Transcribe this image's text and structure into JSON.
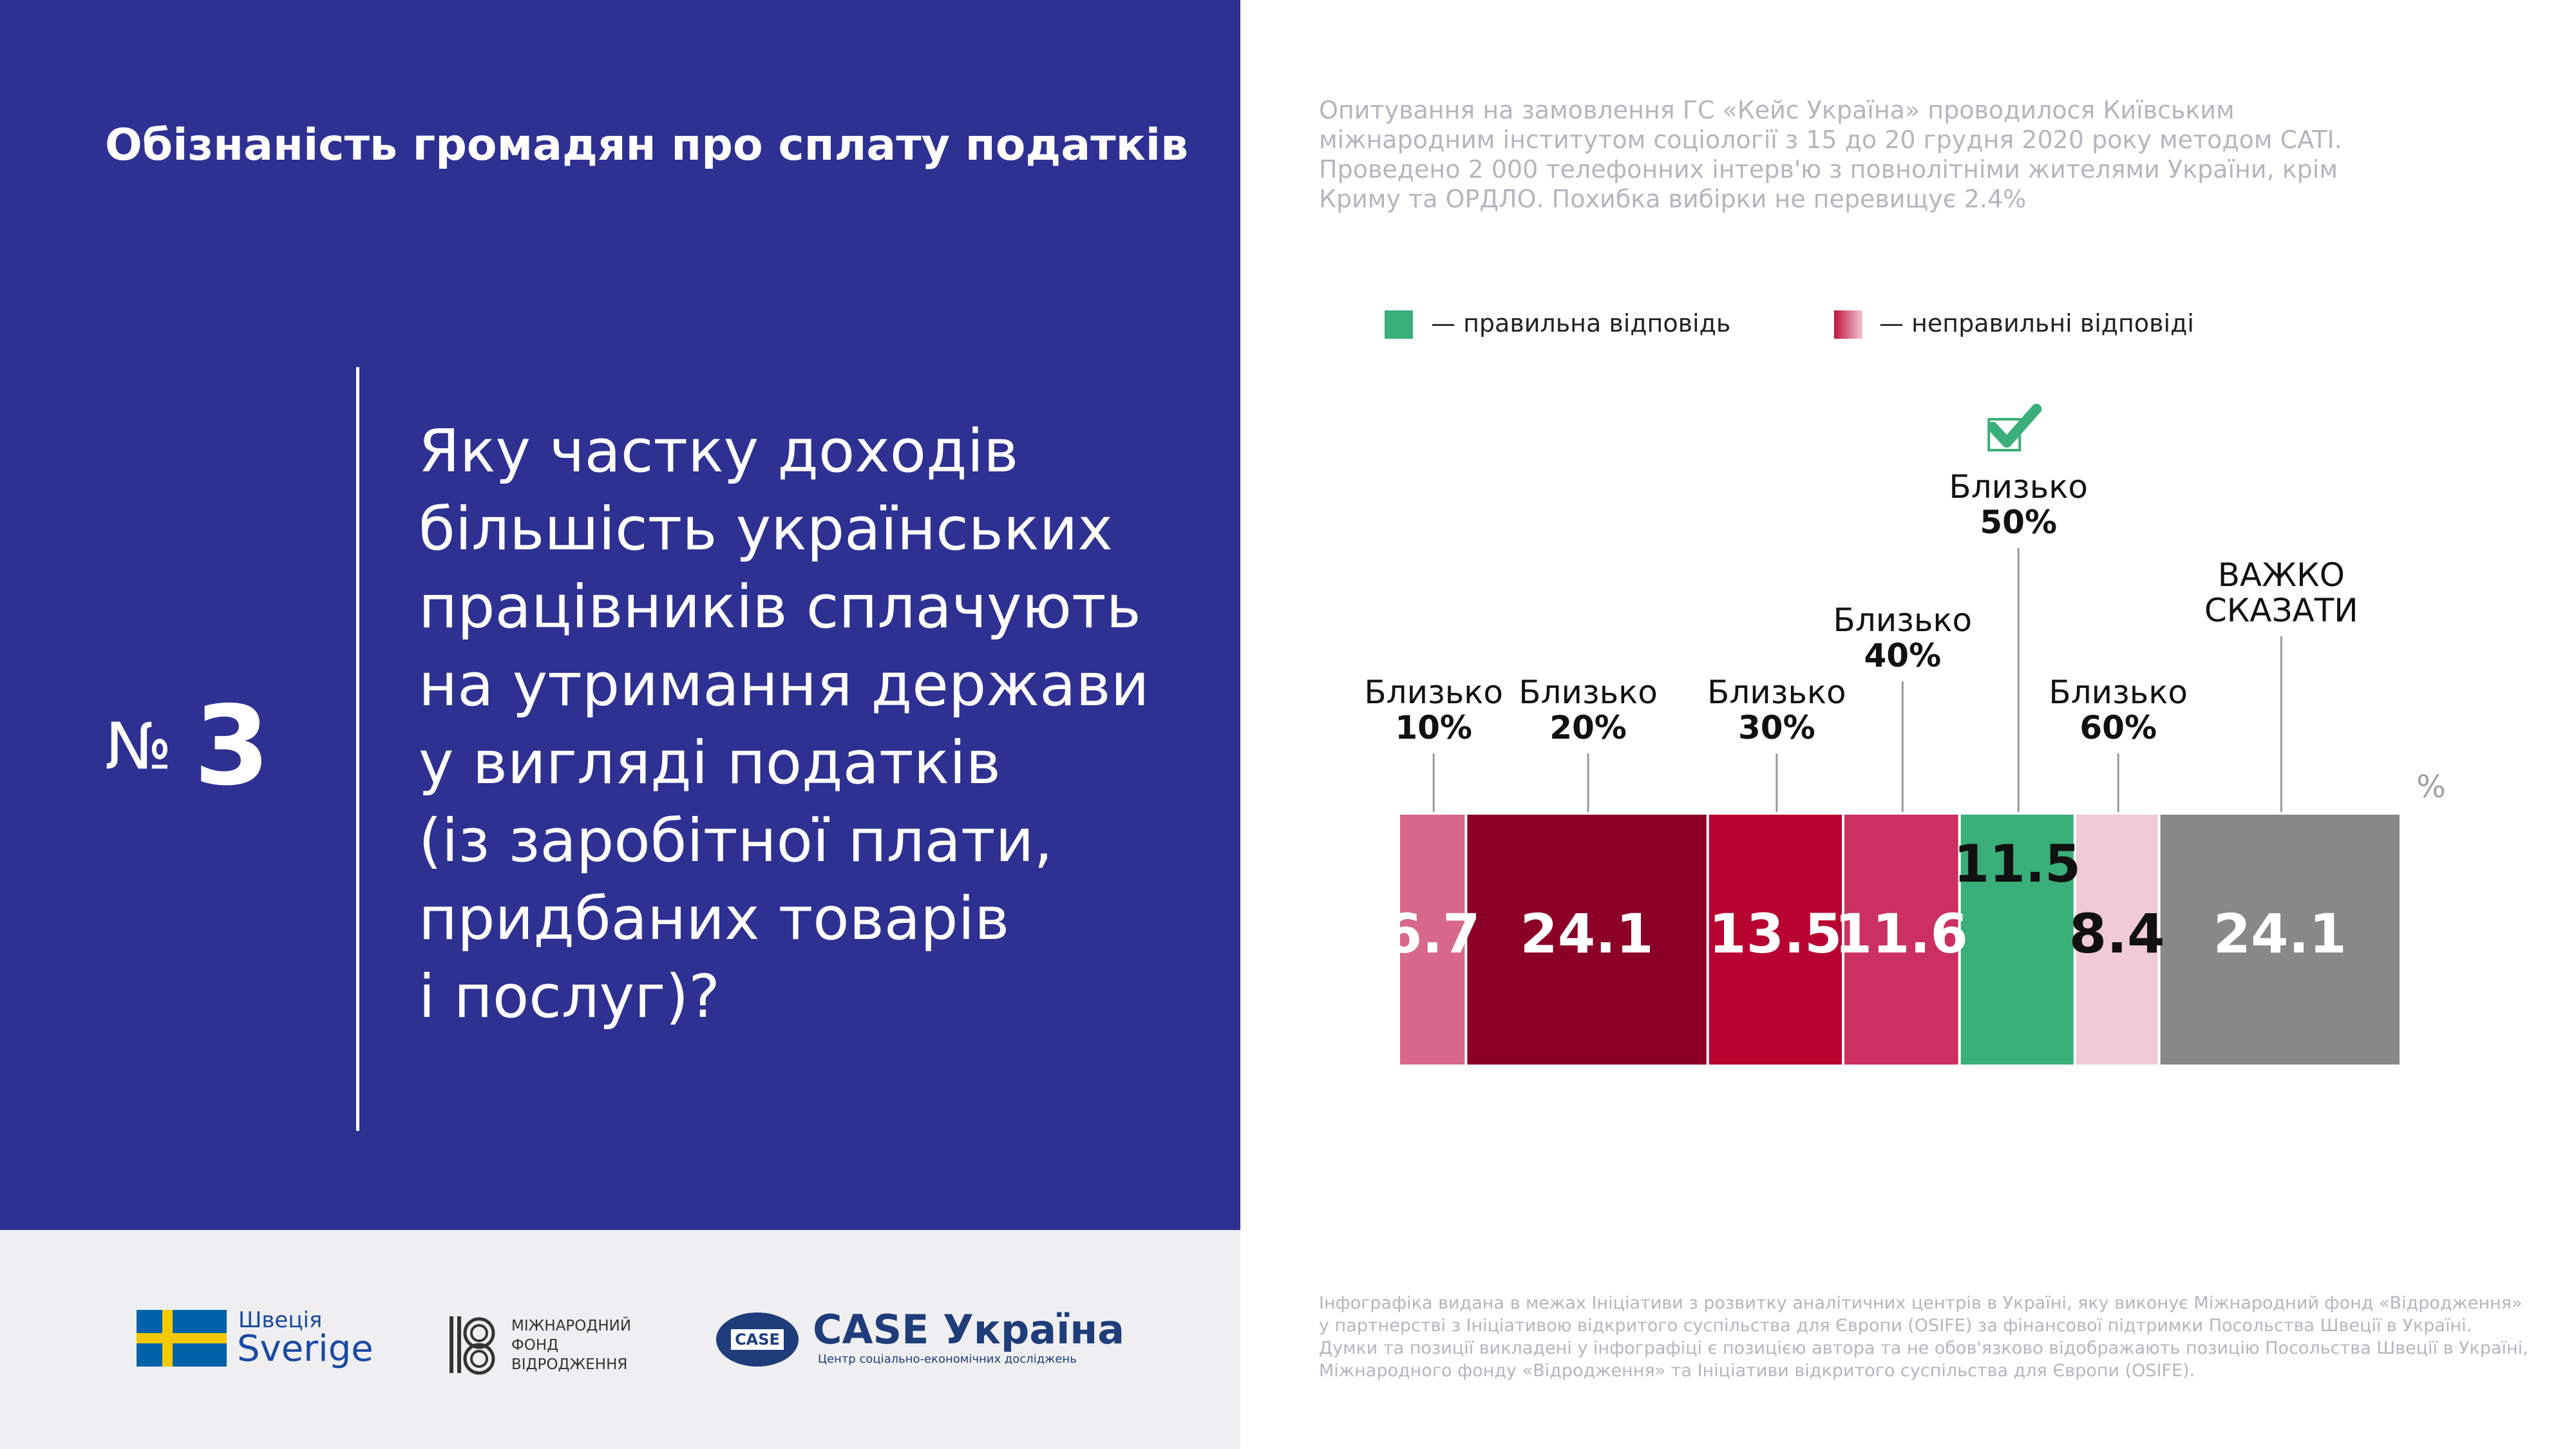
{
  "header": {
    "title": "Обізнаність громадян про сплату податків"
  },
  "question": {
    "number_label": "№",
    "number": "3",
    "lines": [
      "Яку частку доходів",
      "більшість українських",
      "працівників сплачують",
      "на утримання держави",
      "у вигляді податків",
      "(із заробітної плати,",
      "придбаних товарів",
      "і послуг)?"
    ]
  },
  "survey_note": {
    "lines": [
      "Опитування на замовлення ГС «Кейс Україна» проводилося Київським",
      "міжнародним інститутом соціології з 15 до 20 грудня 2020 року методом CATI.",
      "Проведено 2 000 телефонних інтерв'ю з повнолітніми жителями України, крім",
      "Криму та ОРДЛО. Похибка вибірки не перевищує 2.4%"
    ]
  },
  "legend": {
    "correct_label": "— правильна відповідь",
    "incorrect_label": "— неправильні відповіді",
    "correct_color": "#3aaf7a",
    "incorrect_color": "#c0143c"
  },
  "chart_data": {
    "type": "bar",
    "stacked": true,
    "orientation": "horizontal",
    "unit": "%",
    "categories": [
      "Близько 10%",
      "Близько 20%",
      "Близько 30%",
      "Близько 40%",
      "Близько 50%",
      "Близько 60%",
      "ВАЖКО СКАЗАТИ"
    ],
    "segments": [
      {
        "label_line1": "Близько",
        "label_line2": "10%",
        "value": 6.7,
        "value_text": "6.7",
        "color": "#d8688a",
        "text_color": "#ffffff",
        "correct": false
      },
      {
        "label_line1": "Близько",
        "label_line2": "20%",
        "value": 24.1,
        "value_text": "24.1",
        "color": "#8c0028",
        "text_color": "#ffffff",
        "correct": false
      },
      {
        "label_line1": "Близько",
        "label_line2": "30%",
        "value": 13.5,
        "value_text": "13.5",
        "color": "#b80330",
        "text_color": "#ffffff",
        "correct": false
      },
      {
        "label_line1": "Близько",
        "label_line2": "40%",
        "value": 11.6,
        "value_text": "11.6",
        "color": "#cc3060",
        "text_color": "#ffffff",
        "correct": false
      },
      {
        "label_line1": "Близько",
        "label_line2": "50%",
        "value": 11.5,
        "value_text": "11.5",
        "color": "#3aaf7a",
        "text_color": "#111111",
        "correct": true
      },
      {
        "label_line1": "Близько",
        "label_line2": "60%",
        "value": 8.4,
        "value_text": "8.4",
        "color": "#f0cad6",
        "text_color": "#111111",
        "correct": false
      },
      {
        "label_line1": "ВАЖКО",
        "label_line2": "СКАЗАТИ",
        "value": 24.1,
        "value_text": "24.1",
        "color": "#888888",
        "text_color": "#ffffff",
        "correct": false
      }
    ]
  },
  "footer_note": {
    "lines": [
      "Інфографіка видана в межах Ініціативи з розвитку аналітичних центрів в Україні, яку виконує Міжнародний фонд «Відродження»",
      "у партнерстві з Ініціативою відкритого суспільства для Європи (OSIFE) за фінансової підтримки Посольства Швеції в Україні.",
      "Думки та позиції викладені у інфографіці є позицією автора та не обов'язково відображають позицію Посольства Швеції в Україні,",
      "Міжнародного фонду «Відродження» та Ініціативи відкритого суспільства для Європи (OSIFE)."
    ]
  },
  "logos": {
    "sweden_line1": "Швеція",
    "sweden_line2": "Sverige",
    "irf_lines": [
      "МІЖНАРОДНИЙ",
      "ФОНД",
      "ВІДРОДЖЕННЯ"
    ],
    "case_badge": "CASE",
    "case_title": "CASE Україна",
    "case_subtitle": "Центр соціально-економічних досліджень"
  }
}
